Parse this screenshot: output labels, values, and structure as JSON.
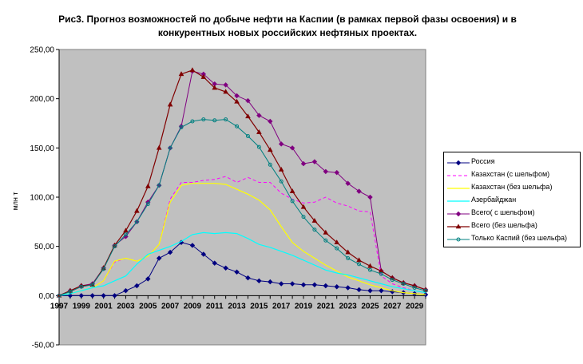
{
  "title_lines": [
    "Рис3. Прогноз возможностей по добыче нефти на Каспии (в рамках первой фазы освоения) и в",
    "конкурентных новых российских нефтяных проектах."
  ],
  "chart_data": {
    "type": "line",
    "title": "Рис3. Прогноз возможностей по добыче нефти на Каспии (в рамках первой фазы освоения) и в конкурентных новых российских нефтяных проектах.",
    "xlabel": "",
    "ylabel": "млн т",
    "xlim": [
      1997,
      2030
    ],
    "ylim": [
      -50,
      250
    ],
    "yticks": [
      -50,
      0,
      50,
      100,
      150,
      200,
      250
    ],
    "ytick_labels": [
      "-50,00",
      "0,00",
      "50,00",
      "100,00",
      "150,00",
      "200,00",
      "250,00"
    ],
    "xtick_labels": [
      "1997",
      "1999",
      "2001",
      "2003",
      "2005",
      "2007",
      "2009",
      "2011",
      "2013",
      "2015",
      "2017",
      "2019",
      "2021",
      "2023",
      "2025",
      "2027",
      "2029"
    ],
    "grid": false,
    "plot_background": "#c0c0c0",
    "legend_position": "right",
    "x": [
      1997,
      1998,
      1999,
      2000,
      2001,
      2002,
      2003,
      2004,
      2005,
      2006,
      2007,
      2008,
      2009,
      2010,
      2011,
      2012,
      2013,
      2014,
      2015,
      2016,
      2017,
      2018,
      2019,
      2020,
      2021,
      2022,
      2023,
      2024,
      2025,
      2026,
      2027,
      2028,
      2029,
      2030
    ],
    "series": [
      {
        "name": "Россия",
        "color": "#000080",
        "style": "solid",
        "marker": "diamond",
        "width": 1,
        "values": [
          0,
          0,
          0,
          0,
          0,
          0,
          5,
          10,
          17,
          38,
          44,
          54,
          51,
          42,
          33,
          28,
          24,
          18,
          15,
          14,
          12,
          12,
          11,
          11,
          10,
          9,
          8,
          6,
          5,
          5,
          4,
          3,
          2,
          1
        ]
      },
      {
        "name": "Казахстан (с шельфом)",
        "color": "#ff00ff",
        "style": "dashed",
        "marker": "none",
        "width": 1,
        "values": [
          0,
          2,
          5,
          8,
          15,
          34,
          38,
          35,
          40,
          52,
          98,
          115,
          115,
          117,
          118,
          121,
          115,
          120,
          115,
          115,
          104,
          98,
          94,
          95,
          100,
          94,
          91,
          86,
          85,
          20,
          12,
          8,
          5,
          3
        ]
      },
      {
        "name": "Казахстан (без шельфа)",
        "color": "#ffff00",
        "style": "solid",
        "marker": "none",
        "width": 1.2,
        "values": [
          0,
          2,
          5,
          8,
          15,
          35,
          38,
          35,
          40,
          52,
          95,
          112,
          114,
          114,
          114,
          113,
          108,
          103,
          97,
          87,
          70,
          54,
          45,
          38,
          31,
          25,
          19,
          15,
          11,
          8,
          5,
          3,
          2,
          1
        ]
      },
      {
        "name": "Азербайджан",
        "color": "#00ffff",
        "style": "solid",
        "marker": "none",
        "width": 1.2,
        "values": [
          0,
          2,
          5,
          8,
          10,
          15,
          20,
          32,
          42,
          46,
          50,
          55,
          62,
          64,
          63,
          64,
          63,
          58,
          52,
          49,
          45,
          41,
          36,
          31,
          26,
          23,
          21,
          18,
          15,
          12,
          9,
          7,
          5,
          3
        ]
      },
      {
        "name": "Всего( с шельфом)",
        "color": "#800080",
        "style": "solid",
        "marker": "diamond",
        "width": 1,
        "values": [
          0,
          5,
          10,
          12,
          28,
          51,
          60,
          75,
          95,
          112,
          150,
          172,
          228,
          225,
          215,
          214,
          203,
          198,
          183,
          177,
          154,
          150,
          134,
          136,
          126,
          125,
          114,
          106,
          100,
          25,
          18,
          13,
          10,
          6
        ]
      },
      {
        "name": "Всего (без шельфа)",
        "color": "#800000",
        "style": "solid",
        "marker": "triangle",
        "width": 1.2,
        "values": [
          0,
          5,
          10,
          11,
          28,
          51,
          66,
          86,
          111,
          150,
          194,
          225,
          229,
          222,
          211,
          207,
          197,
          182,
          166,
          148,
          128,
          106,
          90,
          76,
          64,
          54,
          44,
          36,
          30,
          25,
          18,
          13,
          10,
          6
        ]
      },
      {
        "name": "Только Каспий (без шельфа)",
        "color": "#008080",
        "style": "solid",
        "marker": "circle",
        "width": 1,
        "values": [
          0,
          4,
          9,
          11,
          27,
          50,
          62,
          75,
          93,
          112,
          150,
          171,
          177,
          179,
          178,
          179,
          172,
          162,
          151,
          133,
          116,
          96,
          80,
          67,
          56,
          48,
          38,
          32,
          26,
          22,
          16,
          12,
          8,
          5
        ]
      }
    ]
  }
}
